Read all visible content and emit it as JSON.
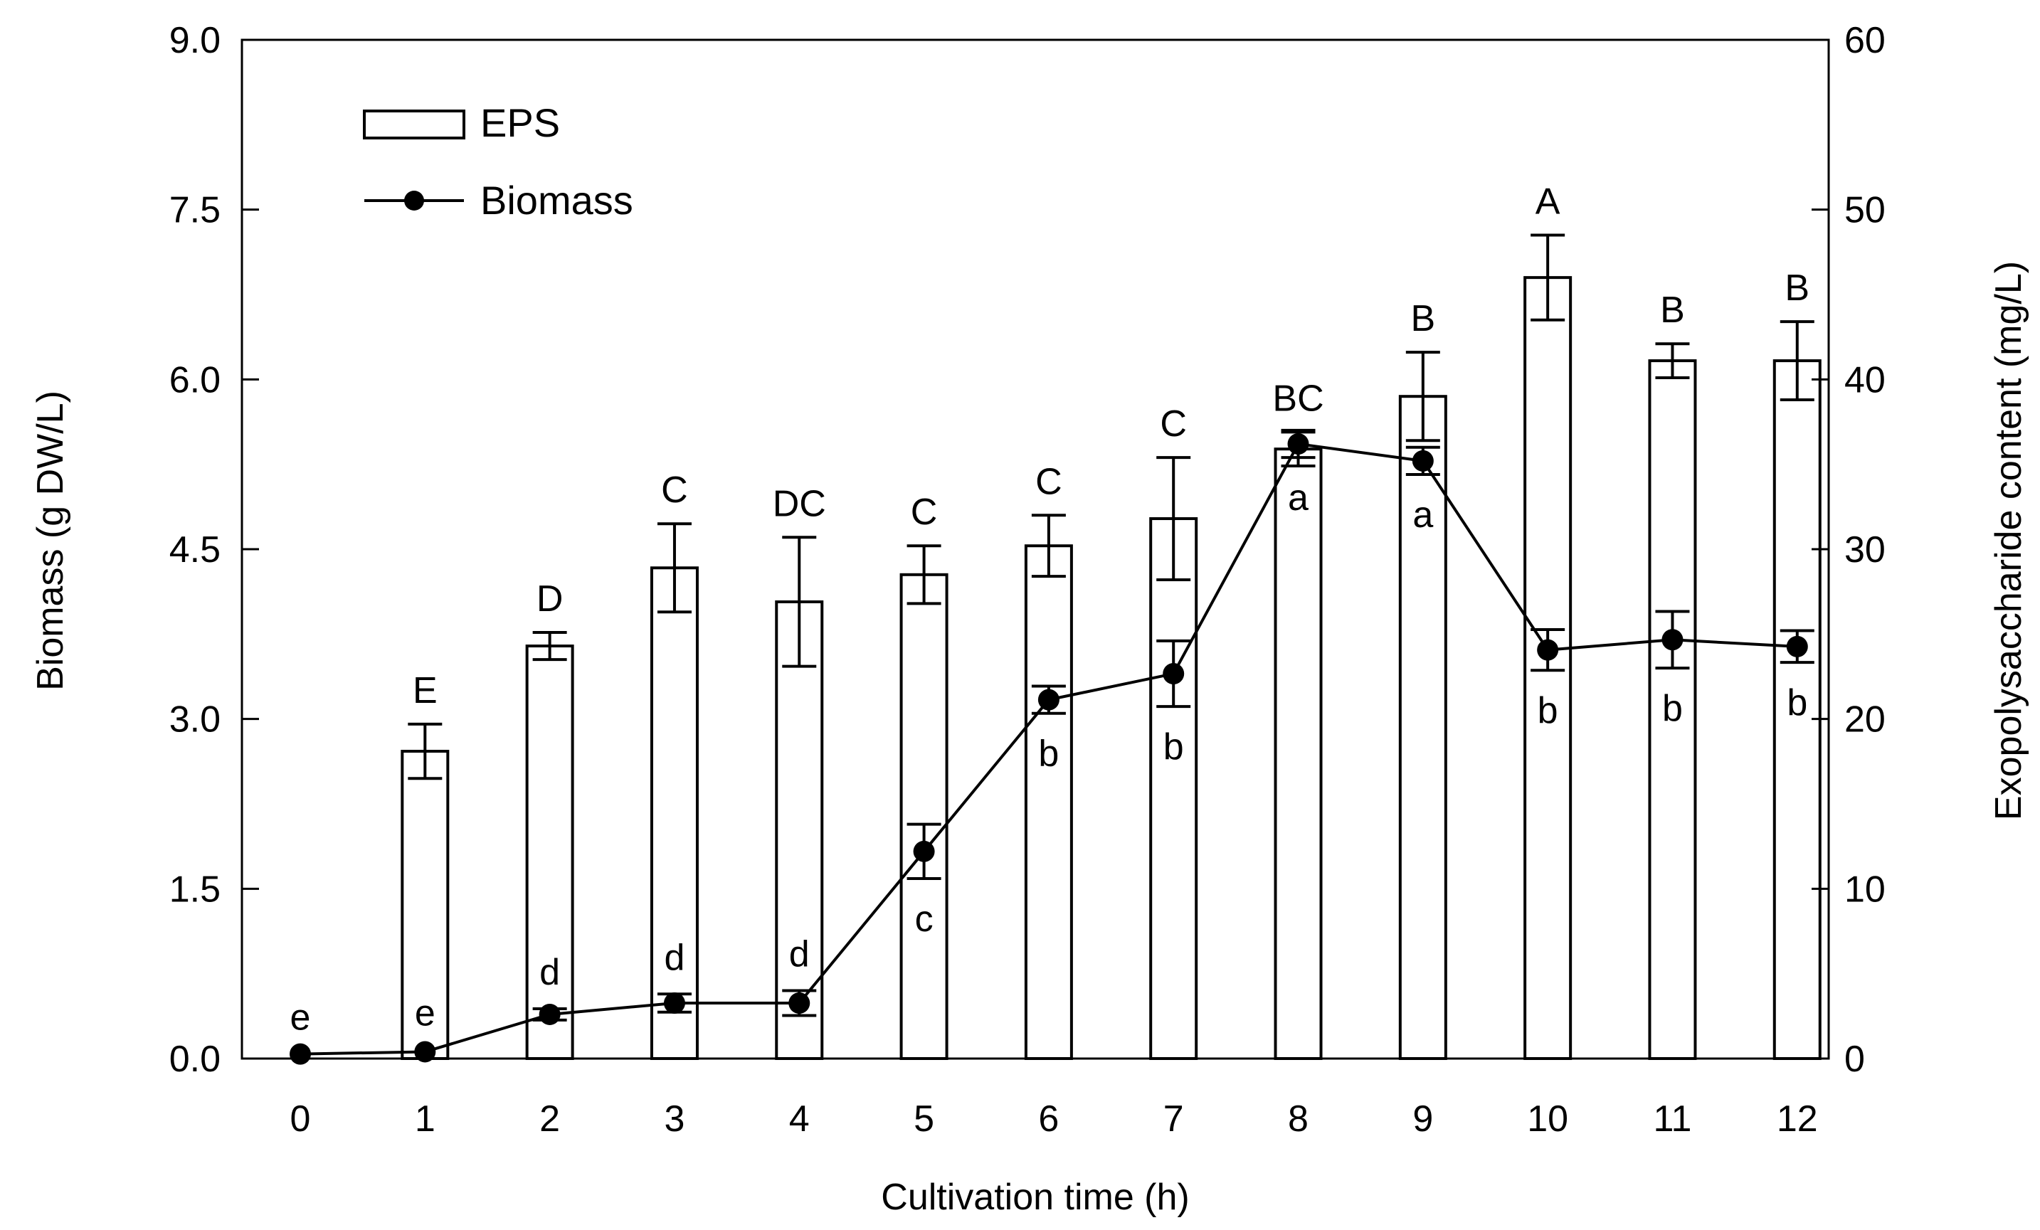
{
  "chart_data": {
    "type": "bar+line",
    "title": "",
    "xlabel": "Cultivation time (h)",
    "ylabel_left": "Biomass (g DW/L)",
    "ylabel_right": "Exopolysaccharide content (mg/L)",
    "categories": [
      "0",
      "1",
      "2",
      "3",
      "4",
      "5",
      "6",
      "7",
      "8",
      "9",
      "10",
      "11",
      "12"
    ],
    "y_left": {
      "min": 0,
      "max": 9,
      "ticks": [
        "0.0",
        "1.5",
        "3.0",
        "4.5",
        "6.0",
        "7.5",
        "9.0"
      ]
    },
    "y_right": {
      "min": 0,
      "max": 60,
      "ticks": [
        "0",
        "10",
        "20",
        "30",
        "40",
        "50",
        "60"
      ]
    },
    "series": [
      {
        "name": "EPS",
        "type": "bar",
        "axis": "right",
        "values": [
          0,
          18.1,
          24.3,
          28.9,
          26.9,
          28.5,
          30.2,
          31.8,
          35.9,
          39.0,
          46.0,
          41.1,
          41.1
        ],
        "errors": [
          0,
          1.6,
          0.8,
          2.6,
          3.8,
          1.7,
          1.8,
          3.6,
          1.0,
          2.6,
          2.5,
          1.0,
          2.3
        ],
        "letters": [
          "",
          "E",
          "D",
          "C",
          "DC",
          "C",
          "C",
          "C",
          "BC",
          "B",
          "A",
          "B",
          "B"
        ]
      },
      {
        "name": "Biomass",
        "type": "line",
        "axis": "left",
        "values": [
          0.04,
          0.06,
          0.39,
          0.49,
          0.49,
          1.83,
          3.17,
          3.4,
          5.43,
          5.28,
          3.61,
          3.7,
          3.64
        ],
        "errors": [
          0,
          0.02,
          0.05,
          0.08,
          0.11,
          0.24,
          0.12,
          0.29,
          0.12,
          0.12,
          0.18,
          0.25,
          0.14
        ],
        "letters": [
          "e",
          "e",
          "d",
          "d",
          "d",
          "c",
          "b",
          "b",
          "a",
          "a",
          "b",
          "b",
          "b"
        ]
      }
    ],
    "legend": [
      "EPS",
      "Biomass"
    ],
    "legend_position": "top-left",
    "grid": false
  }
}
